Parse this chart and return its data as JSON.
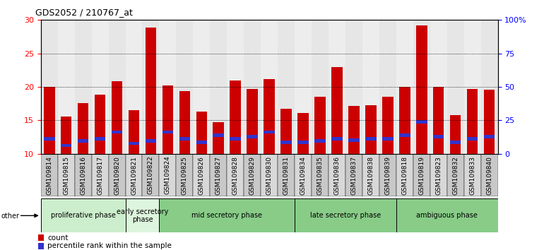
{
  "title": "GDS2052 / 210767_at",
  "samples": [
    "GSM109814",
    "GSM109815",
    "GSM109816",
    "GSM109817",
    "GSM109820",
    "GSM109821",
    "GSM109822",
    "GSM109824",
    "GSM109825",
    "GSM109826",
    "GSM109827",
    "GSM109828",
    "GSM109829",
    "GSM109830",
    "GSM109831",
    "GSM109834",
    "GSM109835",
    "GSM109836",
    "GSM109837",
    "GSM109838",
    "GSM109839",
    "GSM109818",
    "GSM109819",
    "GSM109823",
    "GSM109832",
    "GSM109833",
    "GSM109840"
  ],
  "count_values": [
    20.0,
    15.6,
    17.6,
    18.8,
    20.8,
    16.5,
    28.9,
    20.2,
    19.4,
    16.3,
    14.7,
    20.9,
    19.7,
    21.2,
    16.7,
    16.1,
    18.5,
    23.0,
    17.2,
    17.3,
    18.5,
    20.0,
    29.2,
    20.0,
    15.8,
    19.7,
    19.6
  ],
  "percentile_tops": [
    12.5,
    11.5,
    12.2,
    12.5,
    13.5,
    11.8,
    12.2,
    13.5,
    12.5,
    12.0,
    13.0,
    12.5,
    12.8,
    13.5,
    12.0,
    12.0,
    12.2,
    12.5,
    12.3,
    12.5,
    12.5,
    13.0,
    15.0,
    12.8,
    12.0,
    12.5,
    12.8
  ],
  "percentile_bottoms": [
    12.0,
    11.0,
    11.7,
    12.0,
    13.0,
    11.3,
    11.7,
    13.0,
    12.0,
    11.5,
    12.5,
    12.0,
    12.3,
    13.0,
    11.5,
    11.5,
    11.7,
    12.0,
    11.8,
    12.0,
    12.0,
    12.5,
    14.5,
    12.3,
    11.5,
    12.0,
    12.3
  ],
  "bar_bottom": 10,
  "ylim": [
    10,
    30
  ],
  "yticks_left": [
    10,
    15,
    20,
    25,
    30
  ],
  "ytick_labels_right": [
    "0",
    "25",
    "50",
    "75",
    "100%"
  ],
  "red": "#cc0000",
  "blue": "#3333cc",
  "bar_width": 0.65,
  "phases": [
    {
      "label": "proliferative phase",
      "start": 0,
      "end": 5,
      "color": "#cceecc"
    },
    {
      "label": "early secretory\nphase",
      "start": 5,
      "end": 7,
      "color": "#ddf5dd"
    },
    {
      "label": "mid secretory phase",
      "start": 7,
      "end": 15,
      "color": "#88cc88"
    },
    {
      "label": "late secretory phase",
      "start": 15,
      "end": 21,
      "color": "#88cc88"
    },
    {
      "label": "ambiguous phase",
      "start": 21,
      "end": 27,
      "color": "#88cc88"
    }
  ],
  "tick_bg_colors": [
    "#c8c8c8",
    "#d8d8d8"
  ],
  "title_fontsize": 9,
  "label_fontsize": 6.5,
  "phase_fontsize": 7,
  "legend_items": [
    {
      "color": "#cc0000",
      "label": "count"
    },
    {
      "color": "#3333cc",
      "label": "percentile rank within the sample"
    }
  ]
}
